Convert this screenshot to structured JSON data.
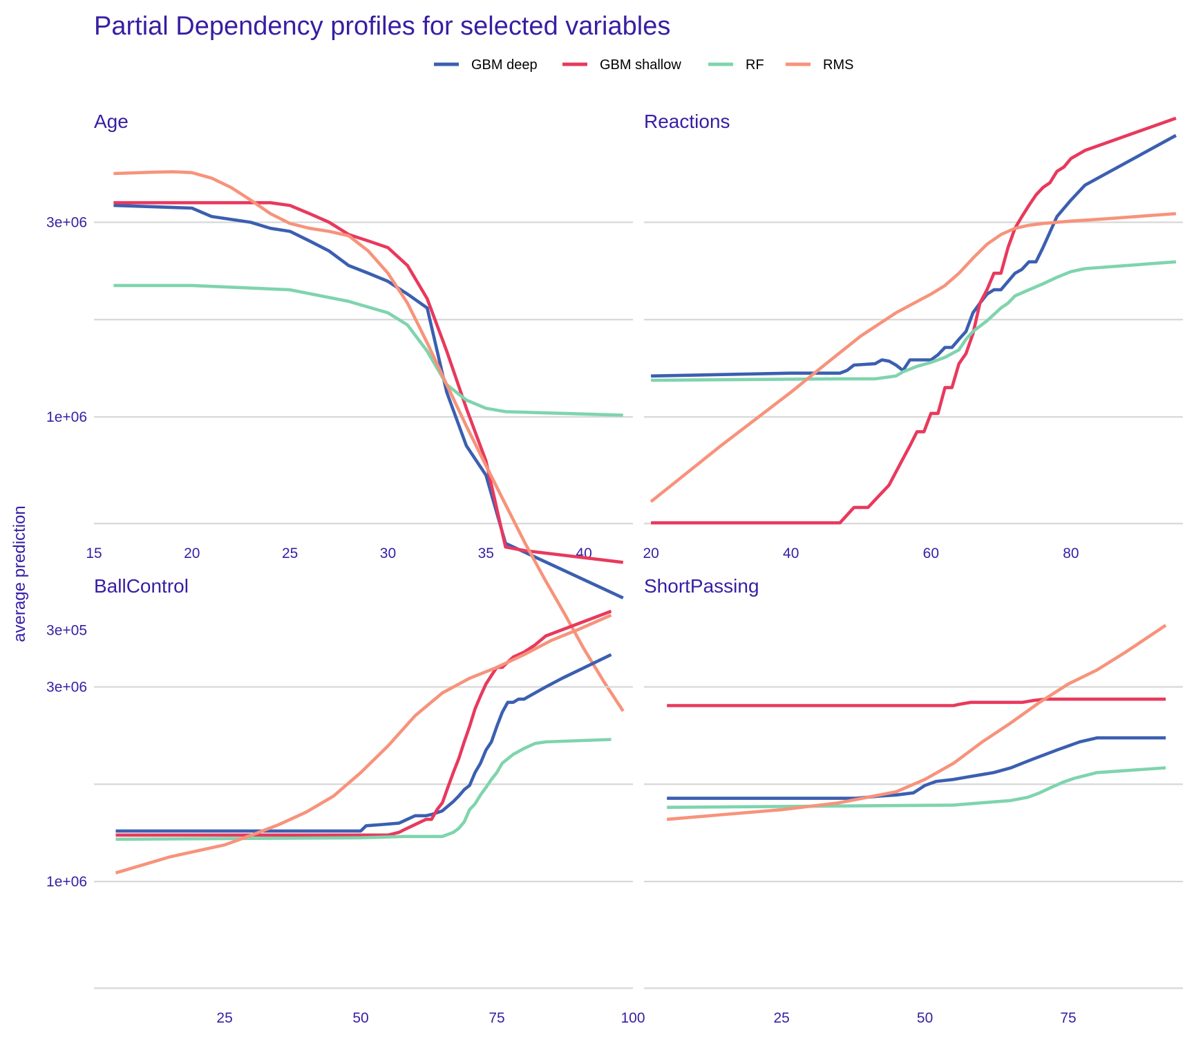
{
  "chart_data": {
    "type": "line",
    "title": "Partial Dependency profiles for selected variables",
    "ylabel": "average prediction",
    "y_scale": "log10",
    "y_ticks": [
      300000,
      1000000,
      3000000
    ],
    "y_tick_labels": [
      "3e+05",
      "1e+06",
      "3e+06"
    ],
    "grid": true,
    "legend_position": "top",
    "series_names": [
      "GBM deep",
      "GBM shallow",
      "RF",
      "RMS"
    ],
    "colors": {
      "GBM deep": "#3b5fb0",
      "GBM shallow": "#e8395d",
      "RF": "#7fd4ad",
      "RMS": "#f7937b",
      "text": "#371ea3",
      "grid": "#d8d8d8"
    },
    "facets": [
      {
        "name": "Age",
        "xlim": [
          15,
          42.5
        ],
        "ylim_log10": [
          5.7,
          6.7
        ],
        "x_ticks": [
          15,
          20,
          25,
          30,
          35,
          40
        ],
        "x_tick_labels": [
          "15",
          "20",
          "25",
          "30",
          "35",
          "40"
        ],
        "series": [
          {
            "name": "GBM deep",
            "x": [
              16,
              20,
              21,
              23,
              24,
              25,
              26,
              27,
              28,
              29,
              30,
              31,
              32,
              33,
              34,
              35,
              36,
              42
            ],
            "y": [
              3300000,
              3250000,
              3100000,
              3000000,
              2900000,
              2850000,
              2700000,
              2550000,
              2350000,
              2250000,
              2150000,
              2000000,
              1850000,
              1150000,
              850000,
              720000,
              490000,
              360000
            ]
          },
          {
            "name": "GBM shallow",
            "x": [
              16,
              24,
              25,
              26,
              27,
              28,
              29,
              30,
              31,
              32,
              33,
              34,
              35,
              36,
              37,
              42
            ],
            "y": [
              3350000,
              3350000,
              3300000,
              3150000,
              3000000,
              2800000,
              2700000,
              2600000,
              2350000,
              1950000,
              1450000,
              1050000,
              780000,
              480000,
              470000,
              440000
            ]
          },
          {
            "name": "RF",
            "x": [
              16,
              20,
              25,
              28,
              30,
              31,
              32,
              33,
              34,
              35,
              36,
              42
            ],
            "y": [
              2100000,
              2100000,
              2050000,
              1920000,
              1800000,
              1680000,
              1450000,
              1200000,
              1100000,
              1050000,
              1030000,
              1010000
            ]
          },
          {
            "name": "RMS",
            "x": [
              16,
              18,
              19,
              20,
              21,
              22,
              23,
              24,
              25,
              26,
              27,
              28,
              29,
              30,
              31,
              32,
              33,
              34,
              35,
              36,
              37,
              38,
              39,
              40,
              41,
              42
            ],
            "y": [
              3950000,
              3980000,
              3990000,
              3970000,
              3850000,
              3650000,
              3400000,
              3150000,
              2980000,
              2900000,
              2850000,
              2780000,
              2550000,
              2250000,
              1900000,
              1520000,
              1200000,
              950000,
              760000,
              610000,
              490000,
              400000,
              330000,
              270000,
              225000,
              190000
            ]
          }
        ]
      },
      {
        "name": "Reactions",
        "xlim": [
          19,
          96
        ],
        "ylim_log10": [
          5.7,
          6.7
        ],
        "x_ticks": [
          20,
          40,
          60,
          80
        ],
        "x_tick_labels": [
          "20",
          "40",
          "60",
          "80"
        ],
        "series": [
          {
            "name": "GBM deep",
            "x": [
              20,
              40,
              47,
              48,
              49,
              52,
              53,
              54,
              55,
              56,
              57,
              60,
              61,
              62,
              63,
              64,
              65,
              66,
              67,
              68,
              69,
              70,
              72,
              73,
              74,
              75,
              76,
              78,
              80,
              82,
              95
            ],
            "y": [
              1260000,
              1280000,
              1280000,
              1300000,
              1340000,
              1350000,
              1380000,
              1370000,
              1340000,
              1300000,
              1380000,
              1380000,
              1420000,
              1480000,
              1480000,
              1550000,
              1620000,
              1800000,
              1900000,
              2000000,
              2050000,
              2050000,
              2250000,
              2300000,
              2400000,
              2400000,
              2600000,
              3100000,
              3400000,
              3700000,
              4900000
            ]
          },
          {
            "name": "GBM shallow",
            "x": [
              20,
              47,
              49,
              51,
              54,
              56,
              57,
              58,
              59,
              60,
              61,
              62,
              63,
              64,
              65,
              66,
              67,
              68,
              69,
              70,
              71,
              72,
              73,
              74,
              75,
              76,
              77,
              78,
              79,
              80,
              82,
              95
            ],
            "y": [
              550000,
              550000,
              600000,
              600000,
              680000,
              790000,
              850000,
              920000,
              920000,
              1020000,
              1020000,
              1180000,
              1180000,
              1350000,
              1430000,
              1600000,
              1900000,
              2050000,
              2250000,
              2250000,
              2600000,
              2900000,
              3100000,
              3300000,
              3500000,
              3650000,
              3750000,
              4000000,
              4100000,
              4300000,
              4500000,
              5400000
            ]
          },
          {
            "name": "RF",
            "x": [
              20,
              47,
              52,
              55,
              56,
              58,
              60,
              62,
              64,
              65,
              66,
              68,
              70,
              71,
              72,
              74,
              76,
              78,
              80,
              82,
              95
            ],
            "y": [
              1230000,
              1240000,
              1240000,
              1260000,
              1290000,
              1330000,
              1360000,
              1400000,
              1460000,
              1550000,
              1620000,
              1720000,
              1850000,
              1900000,
              1980000,
              2050000,
              2120000,
              2200000,
              2270000,
              2310000,
              2400000
            ]
          },
          {
            "name": "RMS",
            "x": [
              20,
              30,
              40,
              45,
              50,
              55,
              60,
              62,
              64,
              66,
              68,
              70,
              72,
              74,
              76,
              80,
              85,
              95
            ],
            "y": [
              620000,
              850000,
              1150000,
              1350000,
              1580000,
              1800000,
              2000000,
              2100000,
              2250000,
              2450000,
              2650000,
              2800000,
              2900000,
              2950000,
              2980000,
              3020000,
              3060000,
              3150000
            ]
          }
        ]
      },
      {
        "name": "BallControl",
        "xlim": [
          1,
          100
        ],
        "ylim_log10": [
          5.7,
          6.7
        ],
        "x_ticks": [
          25,
          50,
          75,
          100
        ],
        "x_tick_labels": [
          "25",
          "50",
          "75",
          "100"
        ],
        "series": [
          {
            "name": "GBM deep",
            "x": [
              5,
              50,
              51,
              54,
              57,
              58,
              60,
              62,
              63,
              65,
              66,
              67,
              68,
              69,
              70,
              71,
              72,
              73,
              74,
              75,
              76,
              77,
              78,
              79,
              80,
              82,
              84,
              87,
              96
            ],
            "y": [
              1330000,
              1330000,
              1370000,
              1380000,
              1390000,
              1410000,
              1450000,
              1450000,
              1460000,
              1490000,
              1530000,
              1570000,
              1620000,
              1680000,
              1720000,
              1850000,
              1950000,
              2100000,
              2200000,
              2400000,
              2600000,
              2750000,
              2750000,
              2800000,
              2800000,
              2900000,
              3000000,
              3150000,
              3600000
            ]
          },
          {
            "name": "GBM shallow",
            "x": [
              5,
              55,
              57,
              58,
              60,
              62,
              63,
              64,
              65,
              66,
              67,
              68,
              69,
              70,
              71,
              72,
              73,
              74,
              75,
              76,
              77,
              78,
              80,
              82,
              84,
              96
            ],
            "y": [
              1300000,
              1300000,
              1320000,
              1340000,
              1380000,
              1420000,
              1420000,
              1500000,
              1560000,
              1700000,
              1850000,
              2000000,
              2200000,
              2400000,
              2650000,
              2850000,
              3050000,
              3200000,
              3350000,
              3350000,
              3450000,
              3550000,
              3650000,
              3800000,
              4000000,
              4600000
            ]
          },
          {
            "name": "RF",
            "x": [
              5,
              50,
              58,
              62,
              65,
              67,
              68,
              69,
              70,
              71,
              72,
              73,
              74,
              75,
              76,
              78,
              80,
              82,
              84,
              96
            ],
            "y": [
              1270000,
              1280000,
              1290000,
              1290000,
              1290000,
              1320000,
              1350000,
              1400000,
              1500000,
              1550000,
              1630000,
              1700000,
              1780000,
              1850000,
              1950000,
              2050000,
              2120000,
              2180000,
              2200000,
              2230000
            ]
          },
          {
            "name": "RMS",
            "x": [
              5,
              15,
              25,
              30,
              35,
              40,
              45,
              50,
              55,
              60,
              65,
              70,
              75,
              80,
              85,
              90,
              96
            ],
            "y": [
              1050000,
              1150000,
              1230000,
              1300000,
              1380000,
              1480000,
              1620000,
              1850000,
              2150000,
              2550000,
              2900000,
              3150000,
              3350000,
              3600000,
              3900000,
              4150000,
              4500000
            ]
          }
        ]
      },
      {
        "name": "ShortPassing",
        "xlim": [
          1,
          95
        ],
        "ylim_log10": [
          5.7,
          6.7
        ],
        "x_ticks": [
          25,
          50,
          75
        ],
        "x_tick_labels": [
          "25",
          "50",
          "75"
        ],
        "series": [
          {
            "name": "GBM deep",
            "x": [
              5,
              38,
              42,
              45,
              48,
              50,
              52,
              55,
              57,
              60,
              62,
              65,
              67,
              69,
              71,
              73,
              75,
              77,
              80,
              92
            ],
            "y": [
              1600000,
              1600000,
              1620000,
              1630000,
              1650000,
              1720000,
              1760000,
              1780000,
              1800000,
              1830000,
              1850000,
              1900000,
              1950000,
              2000000,
              2050000,
              2100000,
              2150000,
              2200000,
              2250000,
              2250000
            ]
          },
          {
            "name": "GBM shallow",
            "x": [
              5,
              55,
              56,
              58,
              67,
              69,
              71,
              92
            ],
            "y": [
              2700000,
              2700000,
              2720000,
              2750000,
              2750000,
              2780000,
              2800000,
              2800000
            ]
          },
          {
            "name": "RF",
            "x": [
              5,
              55,
              60,
              65,
              68,
              70,
              72,
              74,
              76,
              78,
              80,
              92
            ],
            "y": [
              1520000,
              1540000,
              1560000,
              1580000,
              1610000,
              1650000,
              1700000,
              1750000,
              1790000,
              1820000,
              1850000,
              1900000
            ]
          },
          {
            "name": "RMS",
            "x": [
              5,
              15,
              25,
              35,
              45,
              50,
              55,
              60,
              65,
              70,
              75,
              80,
              85,
              92
            ],
            "y": [
              1420000,
              1460000,
              1500000,
              1560000,
              1660000,
              1780000,
              1950000,
              2200000,
              2450000,
              2750000,
              3050000,
              3300000,
              3650000,
              4250000
            ]
          }
        ]
      }
    ]
  }
}
